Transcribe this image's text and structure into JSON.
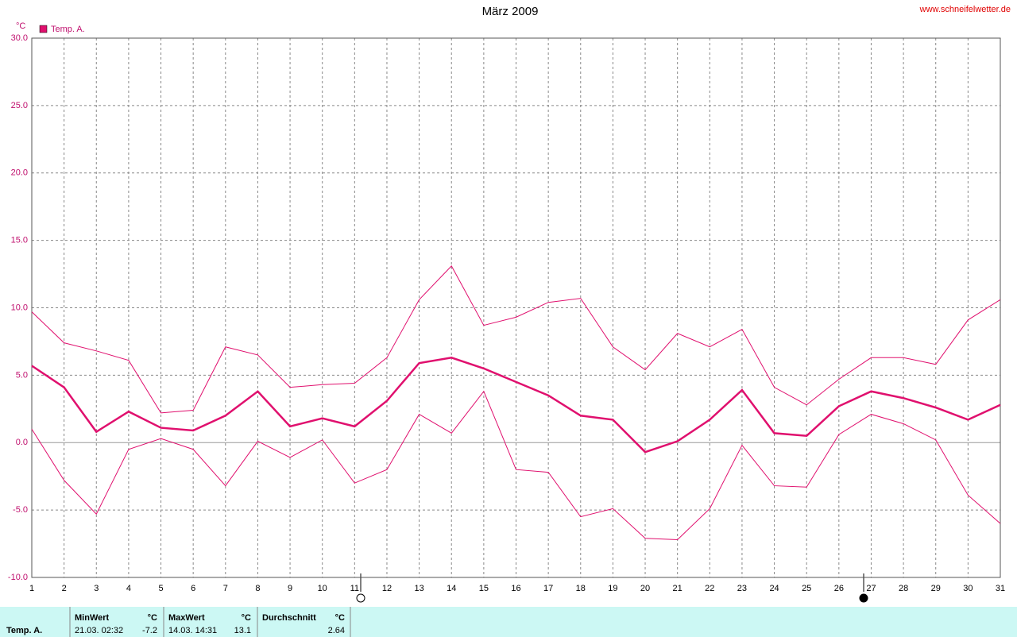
{
  "chart_data": {
    "type": "line",
    "title": "März 2009",
    "source": "www.schneifelwetter.de",
    "y_unit": "°C",
    "x": [
      1,
      2,
      3,
      4,
      5,
      6,
      7,
      8,
      9,
      10,
      11,
      12,
      13,
      14,
      15,
      16,
      17,
      18,
      19,
      20,
      21,
      22,
      23,
      24,
      25,
      26,
      27,
      28,
      29,
      30,
      31
    ],
    "xlim": [
      1,
      31
    ],
    "xticks": [
      1,
      2,
      3,
      4,
      5,
      6,
      7,
      8,
      9,
      10,
      11,
      12,
      13,
      14,
      15,
      16,
      17,
      18,
      19,
      20,
      21,
      22,
      23,
      24,
      25,
      26,
      27,
      28,
      29,
      30,
      31
    ],
    "ylim": [
      -10,
      30
    ],
    "yticks": [
      {
        "value": -10,
        "label": "-10.0"
      },
      {
        "value": -5,
        "label": "-5.0"
      },
      {
        "value": 0,
        "label": "0.0"
      },
      {
        "value": 5,
        "label": "5.0"
      },
      {
        "value": 10,
        "label": "10.0"
      },
      {
        "value": 15,
        "label": "15.0"
      },
      {
        "value": 20,
        "label": "20.0"
      },
      {
        "value": 25,
        "label": "25.0"
      },
      {
        "value": 30,
        "label": "30.0"
      }
    ],
    "grid": true,
    "series": [
      {
        "color": "#e0106e",
        "width": 1,
        "values": [
          9.7,
          7.4,
          6.8,
          6.1,
          2.2,
          2.4,
          7.1,
          6.5,
          4.1,
          4.3,
          4.4,
          6.3,
          10.6,
          13.1,
          8.7,
          9.3,
          10.4,
          10.7,
          7.1,
          5.4,
          8.1,
          7.1,
          8.4,
          4.1,
          2.8,
          4.7,
          6.3,
          6.3,
          5.8,
          9.1,
          10.6
        ]
      },
      {
        "name": "Temp. A.",
        "color": "#e0106e",
        "width": 2.5,
        "values": [
          5.7,
          4.1,
          0.8,
          2.3,
          1.1,
          0.9,
          2.0,
          3.8,
          1.2,
          1.8,
          1.2,
          3.1,
          5.9,
          6.3,
          5.5,
          4.5,
          3.5,
          2.0,
          1.7,
          -0.7,
          0.1,
          1.7,
          3.9,
          0.7,
          0.5,
          2.7,
          3.8,
          3.3,
          2.6,
          1.7,
          2.8
        ]
      },
      {
        "color": "#e0106e",
        "width": 1,
        "values": [
          1.0,
          -2.8,
          -5.3,
          -0.5,
          0.3,
          -0.5,
          -3.2,
          0.1,
          -1.1,
          0.2,
          -3.0,
          -2.0,
          2.1,
          0.7,
          3.8,
          -2.0,
          -2.2,
          -5.5,
          -4.9,
          -7.1,
          -7.2,
          -4.9,
          -0.2,
          -3.2,
          -3.3,
          0.6,
          2.1,
          1.4,
          0.2,
          -3.9,
          -6.0
        ]
      }
    ]
  },
  "summary": {
    "header": [
      "MinWert",
      "°C",
      "MaxWert",
      "°C",
      "Durchschnitt",
      "°C"
    ],
    "row": [
      "Temp. A.",
      "21.03.  02:32",
      "-7.2",
      "14.03.  14:31",
      "13.1",
      "2.64"
    ]
  }
}
